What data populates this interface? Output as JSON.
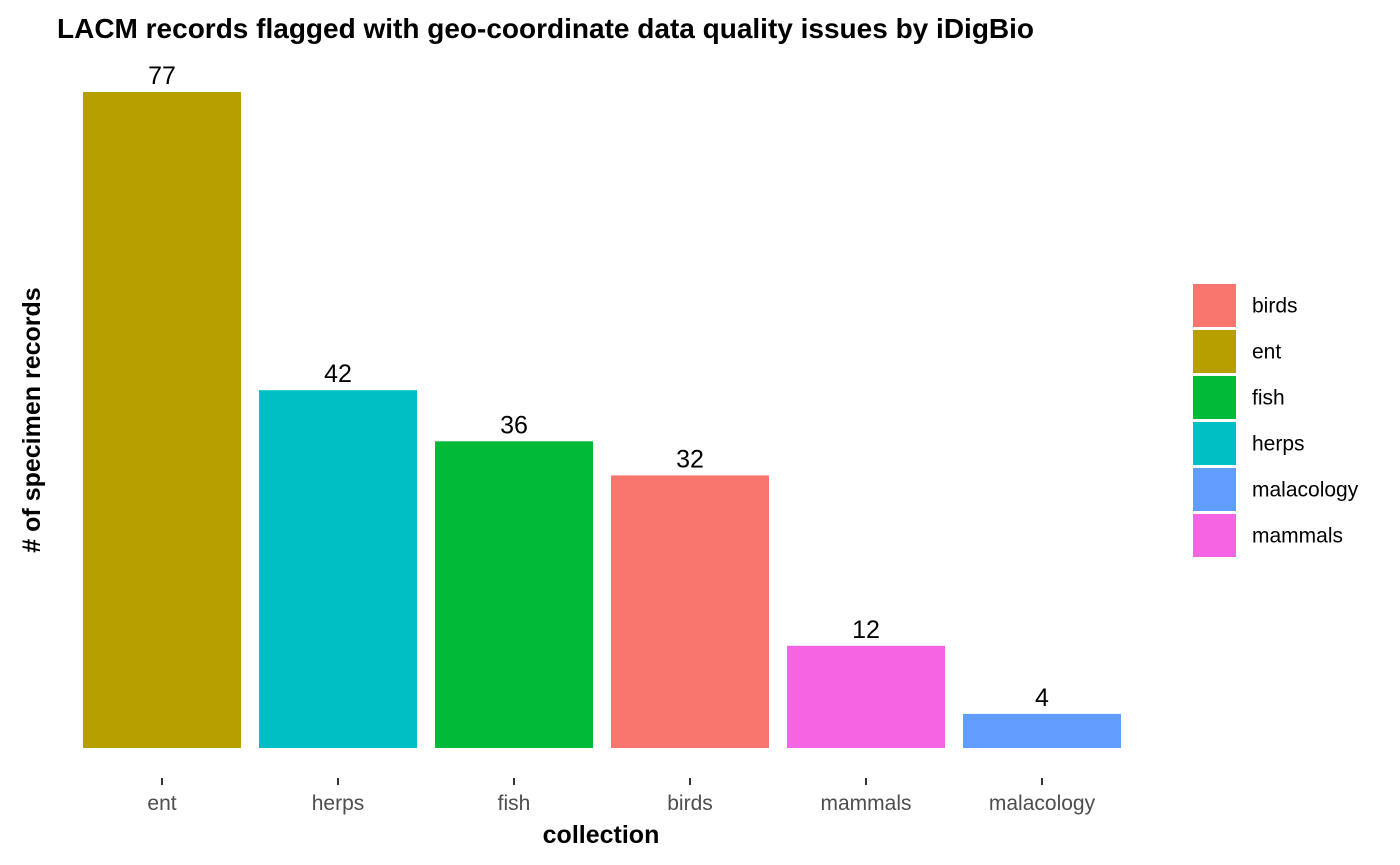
{
  "chart_data": {
    "type": "bar",
    "title": "LACM records flagged with geo-coordinate data quality issues by iDigBio",
    "xlabel": "collection",
    "ylabel": "# of specimen records",
    "categories": [
      "ent",
      "herps",
      "fish",
      "birds",
      "mammals",
      "malacology"
    ],
    "values": [
      77,
      42,
      36,
      32,
      12,
      4
    ],
    "data_labels": [
      "77",
      "42",
      "36",
      "32",
      "12",
      "4"
    ],
    "ylim": [
      0,
      77
    ],
    "grid": false,
    "y_ticks_shown": false,
    "legend_position": "right",
    "legend": [
      {
        "label": "birds",
        "color": "#F8766D"
      },
      {
        "label": "ent",
        "color": "#B79F00"
      },
      {
        "label": "fish",
        "color": "#00BA38"
      },
      {
        "label": "herps",
        "color": "#00BFC4"
      },
      {
        "label": "malacology",
        "color": "#619CFF"
      },
      {
        "label": "mammals",
        "color": "#F564E3"
      }
    ]
  }
}
